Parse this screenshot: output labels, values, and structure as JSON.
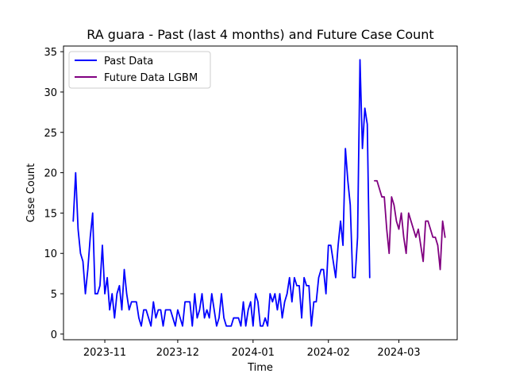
{
  "chart_data": {
    "type": "line",
    "title": "RA guara - Past (last 4 months) and Future Case Count",
    "xlabel": "Time",
    "ylabel": "Case Count",
    "ylim": [
      -0.7,
      35.7
    ],
    "xlim": [
      "2023-10-15",
      "2024-03-25"
    ],
    "xticks": [
      {
        "date": "2023-11-01",
        "label": "2023-11"
      },
      {
        "date": "2023-12-01",
        "label": "2023-12"
      },
      {
        "date": "2024-01-01",
        "label": "2024-01"
      },
      {
        "date": "2024-02-01",
        "label": "2024-02"
      },
      {
        "date": "2024-03-01",
        "label": "2024-03"
      }
    ],
    "yticks": [
      0,
      5,
      10,
      15,
      20,
      25,
      30,
      35
    ],
    "grid": false,
    "legend": "top-left",
    "series": [
      {
        "name": "Past Data",
        "color": "#0000ff",
        "start_date": "2023-10-19",
        "values": [
          14,
          20,
          13,
          10,
          9,
          5,
          8,
          12,
          15,
          5,
          5,
          6,
          11,
          5,
          7,
          3,
          5,
          2,
          5,
          6,
          3,
          8,
          5,
          3,
          4,
          4,
          4,
          2,
          1,
          3,
          3,
          2,
          1,
          4,
          2,
          3,
          3,
          1,
          3,
          3,
          3,
          2,
          1,
          3,
          2,
          1,
          4,
          4,
          4,
          1,
          5,
          2,
          3,
          5,
          2,
          3,
          2,
          5,
          3,
          1,
          2,
          5,
          2,
          1,
          1,
          1,
          2,
          2,
          2,
          1,
          4,
          1,
          3,
          4,
          1,
          5,
          4,
          1,
          1,
          2,
          1,
          5,
          4,
          5,
          3,
          5,
          2,
          4,
          5,
          7,
          4,
          7,
          6,
          6,
          2,
          7,
          6,
          6,
          1,
          4,
          4,
          7,
          8,
          8,
          5,
          11,
          11,
          9,
          7,
          11,
          14,
          11,
          23,
          19,
          16,
          7,
          7,
          12,
          34,
          23,
          28,
          26,
          7
        ]
      },
      {
        "name": "Future Data LGBM",
        "color": "#800080",
        "start_date": "2024-02-20",
        "values": [
          19,
          19,
          18,
          17,
          17,
          13,
          10,
          17,
          16,
          14,
          13,
          15,
          12,
          10,
          15,
          14,
          13,
          12,
          13,
          11,
          9,
          14,
          14,
          13,
          12,
          12,
          11,
          8,
          14,
          12
        ]
      }
    ]
  }
}
